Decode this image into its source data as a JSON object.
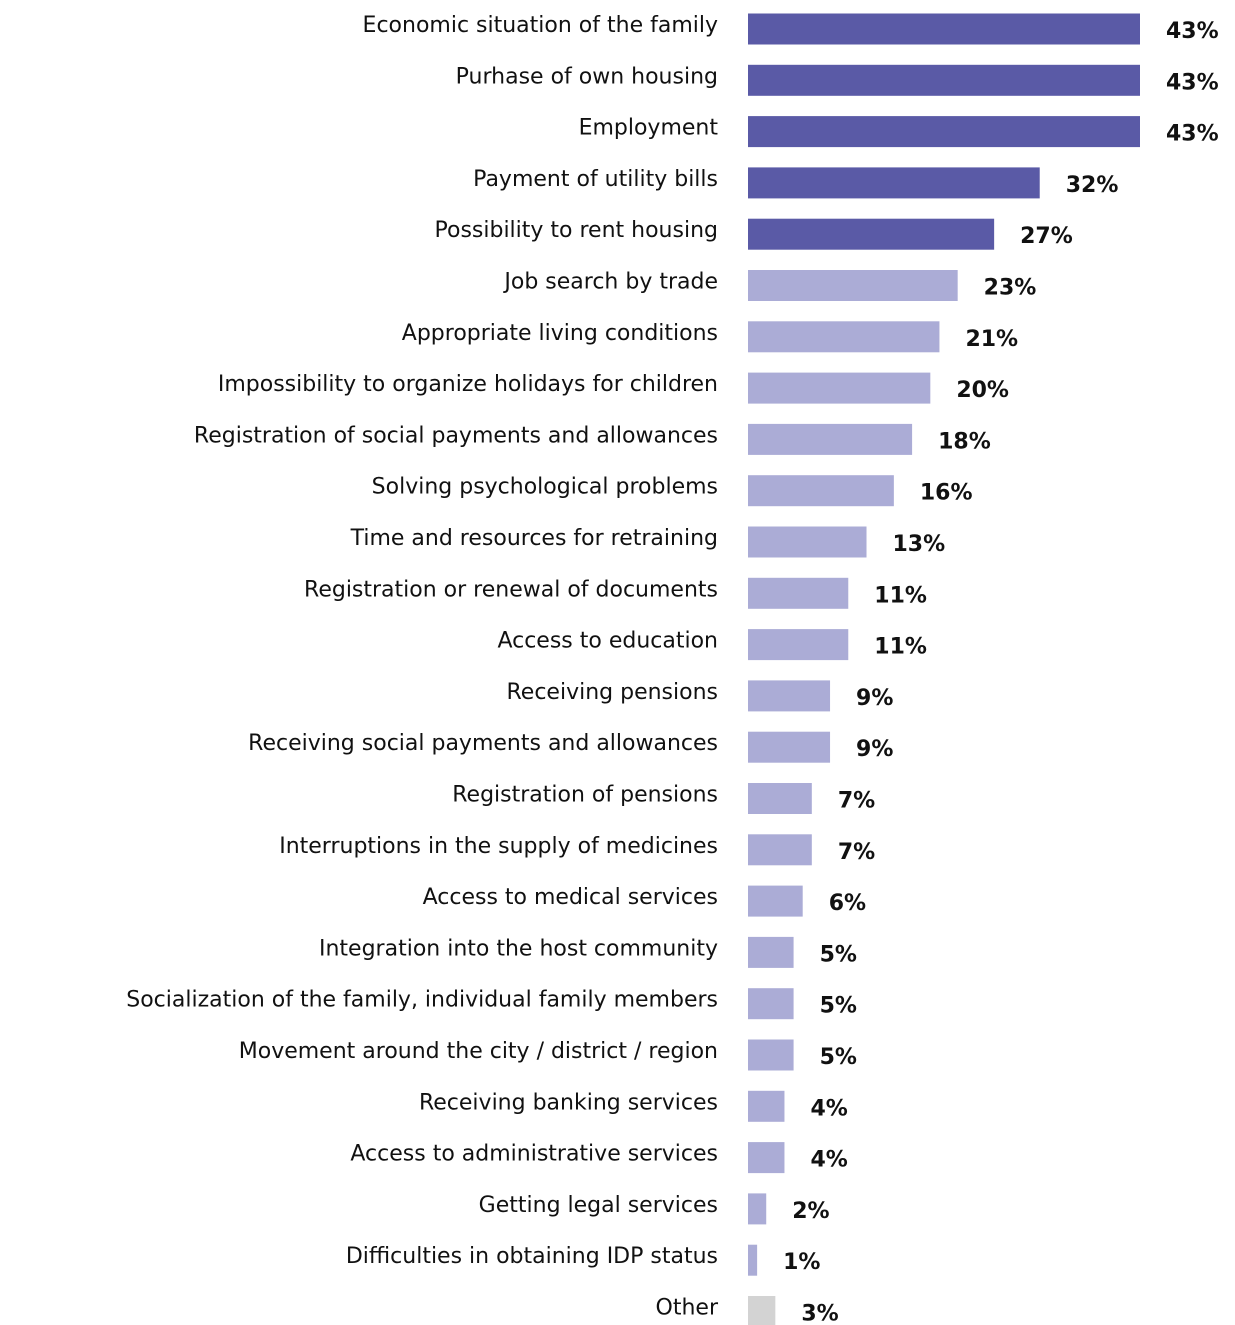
{
  "chart_data": {
    "type": "barh",
    "categories": [
      "Economic situation of the family",
      "Purhase of own housing",
      "Employment",
      "Payment of utility bills",
      "Possibility to rent housing",
      "Job search by trade",
      "Appropriate living conditions",
      "Impossibility to organize holidays for children",
      "Registration of social payments and allowances",
      "Solving psychological problems",
      "Time and resources for retraining",
      "Registration or renewal of documents",
      "Access to education",
      "Receiving pensions",
      "Receiving social payments and allowances",
      "Registration of pensions",
      "Interruptions in the supply of medicines",
      "Access to medical services",
      "Integration into the host community",
      "Socialization of the family, individual family members",
      "Movement around the city / district / region",
      "Receiving banking services",
      "Access to administrative services",
      "Getting legal services",
      "Difficulties in obtaining IDP status",
      "Other"
    ],
    "values": [
      43,
      43,
      43,
      32,
      27,
      23,
      21,
      20,
      18,
      16,
      13,
      11,
      11,
      9,
      9,
      7,
      7,
      6,
      5,
      5,
      5,
      4,
      4,
      2,
      1,
      3
    ],
    "value_labels": [
      "43%",
      "43%",
      "43%",
      "32%",
      "27%",
      "23%",
      "21%",
      "20%",
      "18%",
      "16%",
      "13%",
      "11%",
      "11%",
      "9%",
      "9%",
      "7%",
      "7%",
      "6%",
      "5%",
      "5%",
      "5%",
      "4%",
      "4%",
      "2%",
      "1%",
      "3%"
    ],
    "colors": [
      "#5a5aa6",
      "#5a5aa6",
      "#5a5aa6",
      "#5a5aa6",
      "#5a5aa6",
      "#abacd6",
      "#abacd6",
      "#abacd6",
      "#abacd6",
      "#abacd6",
      "#abacd6",
      "#abacd6",
      "#abacd6",
      "#abacd6",
      "#abacd6",
      "#abacd6",
      "#abacd6",
      "#abacd6",
      "#abacd6",
      "#abacd6",
      "#abacd6",
      "#abacd6",
      "#abacd6",
      "#abacd6",
      "#abacd6",
      "#d3d3d3"
    ]
  }
}
